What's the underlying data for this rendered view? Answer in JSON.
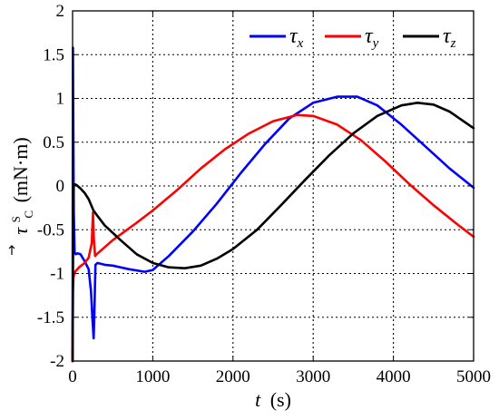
{
  "chart_data": {
    "type": "line",
    "xlabel_var": "t",
    "xlabel_unit": "(s)",
    "ylabel_sym": "τ",
    "ylabel_sup": "S",
    "ylabel_sub": "C",
    "ylabel_unit": "(mN·m)",
    "xlim": [
      0,
      5000
    ],
    "ylim": [
      -2,
      2
    ],
    "x_ticks": [
      0,
      1000,
      2000,
      3000,
      4000,
      5000
    ],
    "y_ticks": [
      -2,
      -1.5,
      -1,
      -0.5,
      0,
      0.5,
      1,
      1.5,
      2
    ],
    "y_tick_labels": [
      "-2",
      "-1.5",
      "-1",
      "-0.5",
      "0",
      "0.5",
      "1",
      "1.5",
      "2"
    ],
    "grid": true,
    "legend_position": "top-right",
    "series": [
      {
        "sym": "τ",
        "sub": "x",
        "color": "#0000ff",
        "x": [
          0,
          5,
          10,
          15,
          25,
          40,
          60,
          100,
          150,
          200,
          230,
          250,
          262,
          270,
          285,
          310,
          400,
          500,
          700,
          900,
          1000,
          1200,
          1500,
          1800,
          2100,
          2400,
          2700,
          3000,
          3300,
          3550,
          3800,
          4100,
          4400,
          4700,
          5000
        ],
        "y": [
          -2.0,
          1.58,
          0.5,
          -0.3,
          -0.76,
          -0.78,
          -0.77,
          -0.78,
          -0.86,
          -0.95,
          -1.2,
          -1.55,
          -1.74,
          -1.5,
          -0.9,
          -0.88,
          -0.9,
          -0.91,
          -0.95,
          -0.98,
          -0.96,
          -0.8,
          -0.52,
          -0.2,
          0.15,
          0.48,
          0.77,
          0.95,
          1.02,
          1.02,
          0.92,
          0.7,
          0.45,
          0.2,
          -0.02
        ]
      },
      {
        "sym": "τ",
        "sub": "y",
        "color": "#ff0000",
        "x": [
          0,
          5,
          10,
          20,
          40,
          80,
          150,
          200,
          240,
          255,
          265,
          280,
          300,
          500,
          800,
          1000,
          1300,
          1600,
          1900,
          2200,
          2500,
          2800,
          3000,
          3300,
          3600,
          3900,
          4200,
          4500,
          4800,
          5000
        ],
        "y": [
          -2.0,
          -1.2,
          -1.05,
          -1.0,
          -0.97,
          -0.93,
          -0.88,
          -0.82,
          -0.65,
          -0.3,
          -0.6,
          -0.8,
          -0.78,
          -0.62,
          -0.42,
          -0.28,
          -0.05,
          0.2,
          0.42,
          0.6,
          0.74,
          0.81,
          0.8,
          0.7,
          0.52,
          0.28,
          0.02,
          -0.22,
          -0.44,
          -0.58
        ]
      },
      {
        "sym": "τ",
        "sub": "z",
        "color": "#000000",
        "x": [
          0,
          5,
          10,
          15,
          25,
          50,
          100,
          150,
          200,
          260,
          300,
          400,
          600,
          800,
          1000,
          1200,
          1400,
          1600,
          1800,
          2000,
          2300,
          2600,
          2900,
          3200,
          3500,
          3800,
          4100,
          4300,
          4500,
          4700,
          5000
        ],
        "y": [
          -2.0,
          -1.0,
          -0.2,
          0.0,
          0.02,
          0.01,
          -0.03,
          -0.08,
          -0.15,
          -0.28,
          -0.33,
          -0.45,
          -0.62,
          -0.78,
          -0.88,
          -0.93,
          -0.94,
          -0.91,
          -0.83,
          -0.72,
          -0.5,
          -0.22,
          0.07,
          0.35,
          0.6,
          0.8,
          0.92,
          0.95,
          0.93,
          0.85,
          0.66
        ]
      }
    ]
  }
}
